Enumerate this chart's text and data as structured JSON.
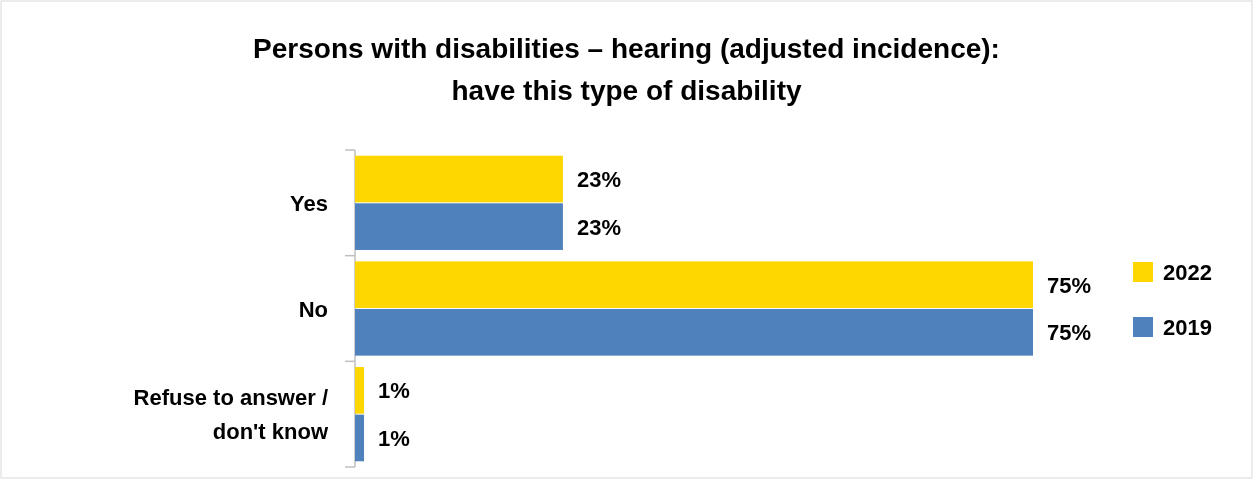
{
  "chart_data": {
    "type": "bar",
    "orientation": "horizontal",
    "title": "Persons with disabilities – hearing (adjusted incidence): have this type of disability",
    "categories": [
      "Yes",
      "No",
      "Refuse to answer / don't know"
    ],
    "series": [
      {
        "name": "2022",
        "color": "#ffd700",
        "values": [
          23,
          75,
          1
        ],
        "value_labels": [
          "23%",
          "75%",
          "1%"
        ]
      },
      {
        "name": "2019",
        "color": "#4f81bd",
        "values": [
          23,
          75,
          1
        ],
        "value_labels": [
          "23%",
          "75%",
          "1%"
        ]
      }
    ],
    "legend": "right",
    "grid": false
  }
}
